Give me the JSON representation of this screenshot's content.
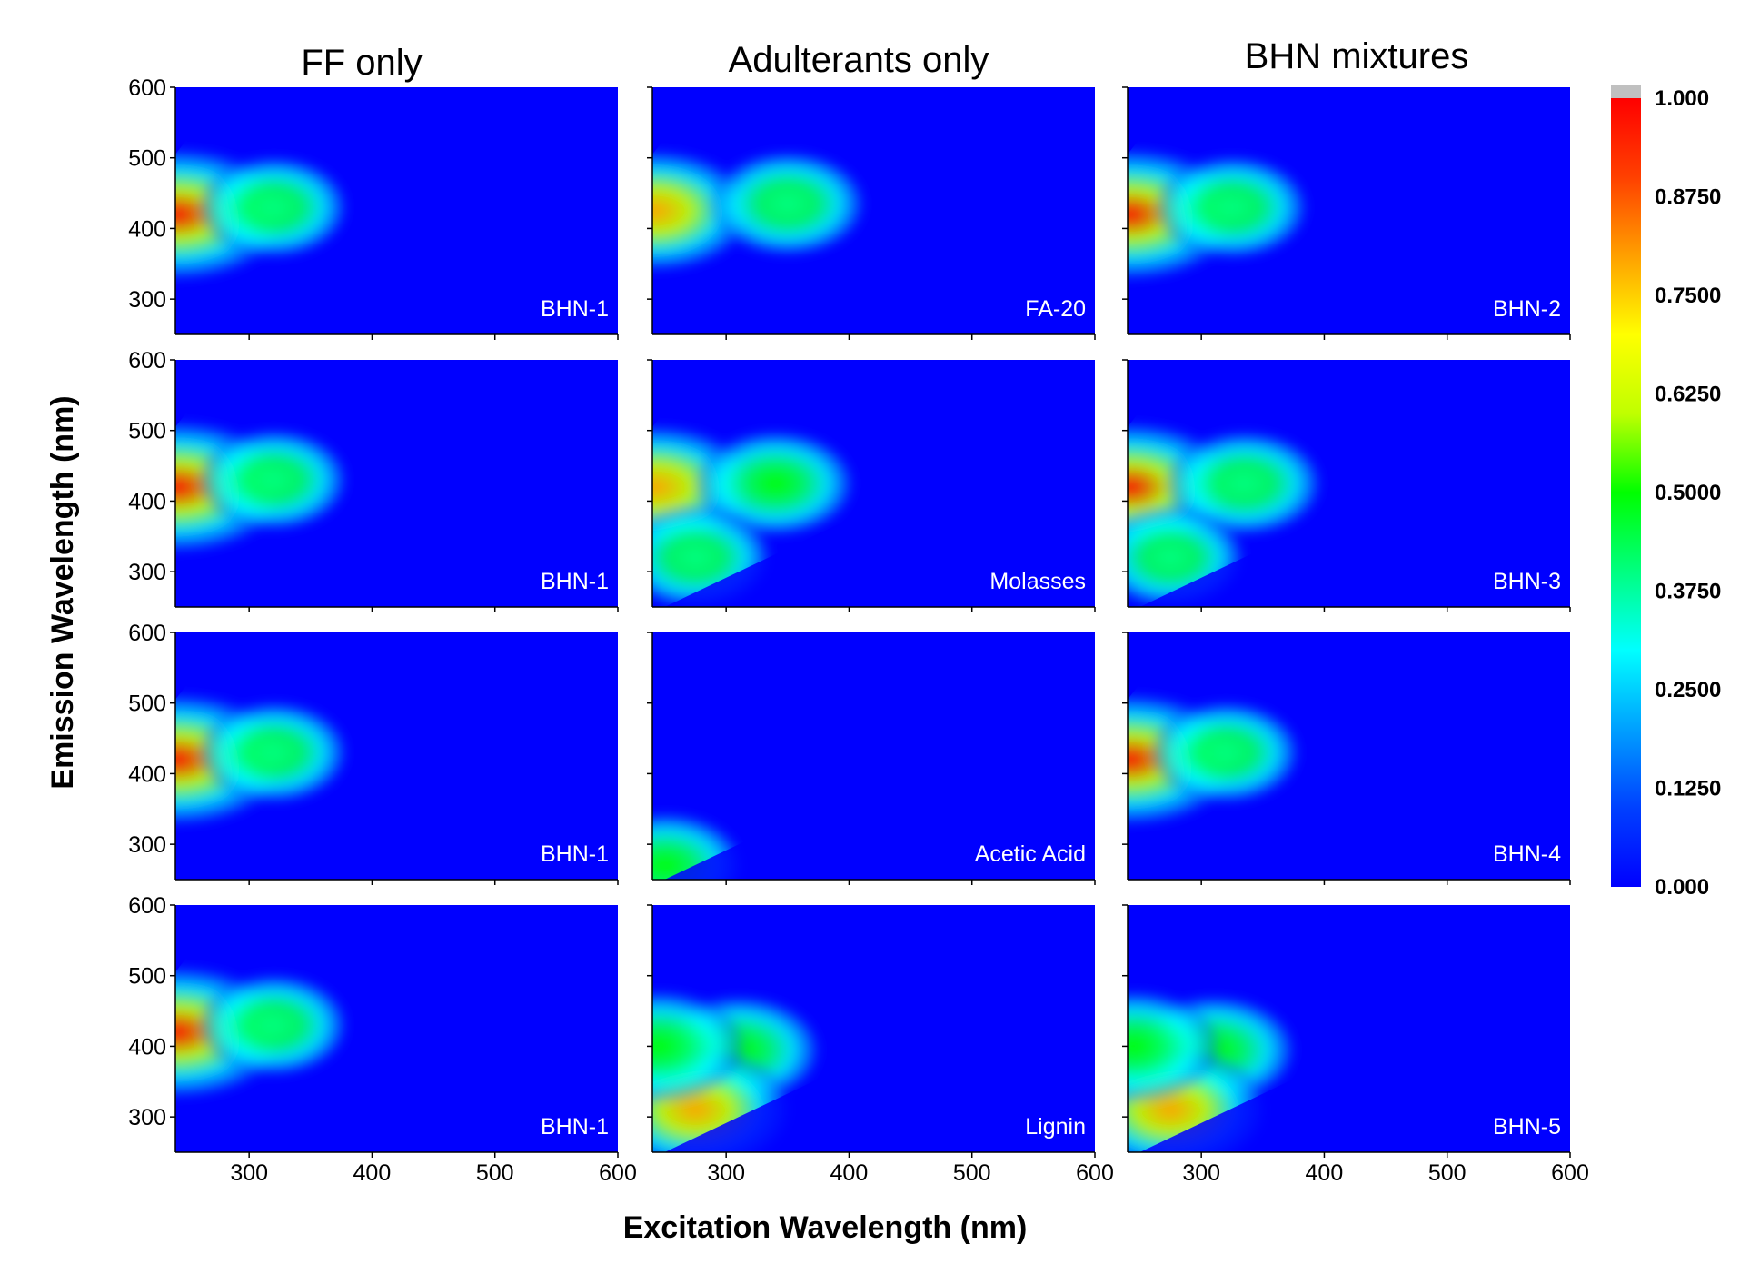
{
  "chart_data": {
    "type": "heatmap",
    "xlabel": "Excitation Wavelength (nm)",
    "ylabel": "Emission Wavelength (nm)",
    "xlim": [
      240,
      600
    ],
    "ylim": [
      250,
      600
    ],
    "x_ticks": [
      "300",
      "400",
      "500",
      "600"
    ],
    "y_ticks": [
      "300",
      "400",
      "500",
      "600"
    ],
    "column_titles": [
      "FF only",
      "Adulterants only",
      "BHN mixtures"
    ],
    "colorbar": {
      "range": [
        0,
        1
      ],
      "ticks": [
        "1.000",
        "0.8750",
        "0.7500",
        "0.6250",
        "0.5000",
        "0.3750",
        "0.2500",
        "0.1250",
        "0.000"
      ],
      "colors": [
        "#0000ff",
        "#0040ff",
        "#00a0ff",
        "#00ffff",
        "#00ff80",
        "#00ff00",
        "#c0ff00",
        "#ffff00",
        "#ffa000",
        "#ff4000",
        "#ff0000"
      ],
      "over_color": "#c0c0c0"
    },
    "panels": [
      {
        "label": "BHN-1",
        "row": 0,
        "col": 0,
        "peaks": [
          {
            "ex": 242,
            "em": 420,
            "intensity": 1.0
          },
          {
            "ex": 320,
            "em": 430,
            "intensity": 0.42
          }
        ]
      },
      {
        "label": "FA-20",
        "row": 0,
        "col": 1,
        "peaks": [
          {
            "ex": 242,
            "em": 425,
            "intensity": 0.8
          },
          {
            "ex": 350,
            "em": 435,
            "intensity": 0.48
          }
        ]
      },
      {
        "label": "BHN-2",
        "row": 0,
        "col": 2,
        "peaks": [
          {
            "ex": 242,
            "em": 420,
            "intensity": 1.0
          },
          {
            "ex": 325,
            "em": 430,
            "intensity": 0.45
          }
        ]
      },
      {
        "label": "BHN-1",
        "row": 1,
        "col": 0,
        "peaks": [
          {
            "ex": 242,
            "em": 420,
            "intensity": 1.0
          },
          {
            "ex": 320,
            "em": 430,
            "intensity": 0.42
          }
        ]
      },
      {
        "label": "Molasses",
        "row": 1,
        "col": 1,
        "peaks": [
          {
            "ex": 242,
            "em": 420,
            "intensity": 0.85
          },
          {
            "ex": 340,
            "em": 425,
            "intensity": 0.5
          },
          {
            "ex": 275,
            "em": 320,
            "intensity": 0.45
          }
        ]
      },
      {
        "label": "BHN-3",
        "row": 1,
        "col": 2,
        "peaks": [
          {
            "ex": 242,
            "em": 420,
            "intensity": 0.95
          },
          {
            "ex": 335,
            "em": 425,
            "intensity": 0.48
          },
          {
            "ex": 275,
            "em": 320,
            "intensity": 0.42
          }
        ]
      },
      {
        "label": "BHN-1",
        "row": 2,
        "col": 0,
        "peaks": [
          {
            "ex": 242,
            "em": 420,
            "intensity": 1.0
          },
          {
            "ex": 320,
            "em": 430,
            "intensity": 0.42
          }
        ]
      },
      {
        "label": "Acetic Acid",
        "row": 2,
        "col": 1,
        "peaks": [
          {
            "ex": 250,
            "em": 270,
            "intensity": 0.5
          }
        ]
      },
      {
        "label": "BHN-4",
        "row": 2,
        "col": 2,
        "peaks": [
          {
            "ex": 242,
            "em": 420,
            "intensity": 1.0
          },
          {
            "ex": 320,
            "em": 430,
            "intensity": 0.42
          }
        ]
      },
      {
        "label": "BHN-1",
        "row": 3,
        "col": 0,
        "peaks": [
          {
            "ex": 242,
            "em": 420,
            "intensity": 1.0
          },
          {
            "ex": 320,
            "em": 430,
            "intensity": 0.42
          }
        ]
      },
      {
        "label": "Lignin",
        "row": 3,
        "col": 1,
        "peaks": [
          {
            "ex": 310,
            "em": 395,
            "intensity": 0.55
          },
          {
            "ex": 275,
            "em": 310,
            "intensity": 0.8
          },
          {
            "ex": 245,
            "em": 400,
            "intensity": 0.6
          }
        ]
      },
      {
        "label": "BHN-5",
        "row": 3,
        "col": 2,
        "peaks": [
          {
            "ex": 310,
            "em": 395,
            "intensity": 0.55
          },
          {
            "ex": 275,
            "em": 310,
            "intensity": 0.8
          },
          {
            "ex": 245,
            "em": 400,
            "intensity": 0.6
          }
        ]
      }
    ]
  }
}
